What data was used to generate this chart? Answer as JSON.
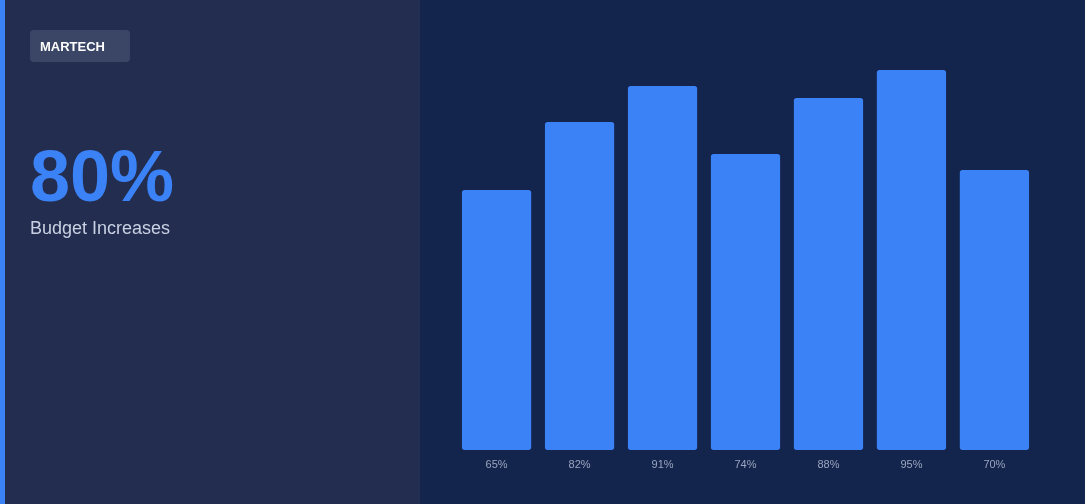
{
  "chart_data": {
    "type": "bar",
    "annotations": [
      "MARTECH",
      "80%",
      "Budget Increases"
    ],
    "categories": [
      null,
      null,
      null,
      null,
      null,
      null,
      null
    ],
    "values": [
      65,
      82,
      91,
      74,
      88,
      95,
      70
    ],
    "value_labels": [
      "65%",
      "82%",
      "91%",
      "74%",
      "88%",
      "95%",
      "70%"
    ],
    "color": "#3b82f6"
  }
}
